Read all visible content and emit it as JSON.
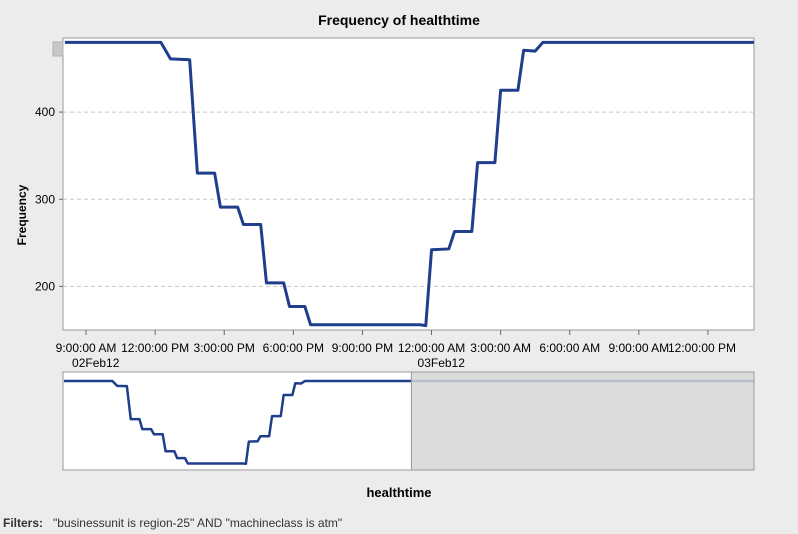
{
  "chart_data": {
    "type": "line",
    "title": "Frequency of healthtime",
    "xlabel": "healthtime",
    "ylabel": "Frequency",
    "ylim": [
      150,
      485
    ],
    "yticks": [
      200,
      300,
      400
    ],
    "xlim": [
      "2012-02-02T08:00",
      "2012-02-03T14:00"
    ],
    "xticks": [
      {
        "t": "2012-02-02T09:00",
        "label": "9:00:00 AM",
        "date": "02Feb12"
      },
      {
        "t": "2012-02-02T12:00",
        "label": "12:00:00 PM",
        "date": ""
      },
      {
        "t": "2012-02-02T15:00",
        "label": "3:00:00 PM",
        "date": ""
      },
      {
        "t": "2012-02-02T18:00",
        "label": "6:00:00 PM",
        "date": ""
      },
      {
        "t": "2012-02-02T21:00",
        "label": "9:00:00 PM",
        "date": ""
      },
      {
        "t": "2012-02-03T00:00",
        "label": "12:00:00 AM",
        "date": "03Feb12"
      },
      {
        "t": "2012-02-03T03:00",
        "label": "3:00:00 AM",
        "date": ""
      },
      {
        "t": "2012-02-03T06:00",
        "label": "6:00:00 AM",
        "date": ""
      },
      {
        "t": "2012-02-03T09:00",
        "label": "9:00:00 AM",
        "date": ""
      },
      {
        "t": "2012-02-03T12:00",
        "label": "12:00:00 PM",
        "date": ""
      }
    ],
    "grid": true,
    "color": "#1f3f8c",
    "x": [
      "2012-02-02T08:05",
      "2012-02-02T12:15",
      "2012-02-02T12:40",
      "2012-02-02T13:30",
      "2012-02-02T13:50",
      "2012-02-02T14:35",
      "2012-02-02T14:50",
      "2012-02-02T15:35",
      "2012-02-02T15:50",
      "2012-02-02T16:35",
      "2012-02-02T16:50",
      "2012-02-02T17:35",
      "2012-02-02T17:50",
      "2012-02-02T18:30",
      "2012-02-02T18:45",
      "2012-02-02T20:00",
      "2012-02-02T23:30",
      "2012-02-02T23:45",
      "2012-02-03T00:00",
      "2012-02-03T00:45",
      "2012-02-03T01:00",
      "2012-02-03T01:45",
      "2012-02-03T02:00",
      "2012-02-03T02:45",
      "2012-02-03T03:00",
      "2012-02-03T03:45",
      "2012-02-03T04:00",
      "2012-02-03T04:30",
      "2012-02-03T04:50",
      "2012-02-03T08:00",
      "2012-02-03T11:00",
      "2012-02-03T14:00"
    ],
    "values": [
      480,
      480,
      461,
      460,
      330,
      330,
      291,
      291,
      271,
      271,
      204,
      204,
      177,
      177,
      156,
      156,
      156,
      155,
      242,
      243,
      263,
      263,
      342,
      342,
      425,
      425,
      471,
      470,
      480,
      480,
      480,
      480
    ],
    "overview": {
      "selection_start": "2012-02-03T14:00",
      "selection_end": "2012-02-04T19:30",
      "xlim": [
        "2012-02-02T08:00",
        "2012-02-04T19:30"
      ]
    }
  },
  "filters": {
    "label": "Filters:",
    "text": "\"businessunit is region-25\" AND \"machineclass is atm\""
  }
}
